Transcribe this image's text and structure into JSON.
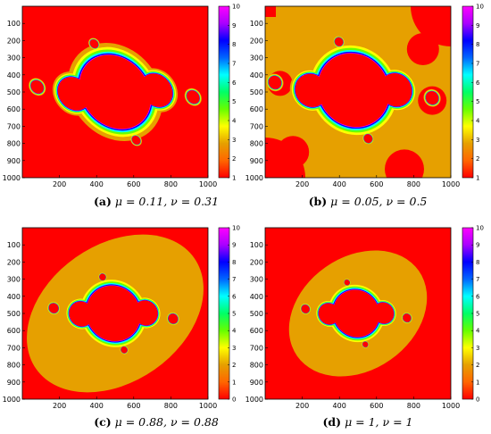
{
  "panels": [
    {
      "id": "a",
      "letter": "(a)",
      "caption_math": "μ = 0.11, ν = 0.31",
      "chart_data": {
        "type": "heatmap",
        "title": "",
        "xlabel": "",
        "ylabel": "",
        "xlim": [
          0,
          1000
        ],
        "ylim": [
          0,
          1000
        ],
        "x_ticks": [
          200,
          400,
          600,
          800,
          1000
        ],
        "y_ticks": [
          100,
          200,
          300,
          400,
          500,
          600,
          700,
          800,
          900,
          1000
        ],
        "colorbar": {
          "min": 1,
          "max": 10,
          "ticks": [
            1,
            2,
            3,
            4,
            5,
            6,
            7,
            8,
            9,
            10
          ]
        },
        "params": {
          "mu": 0.11,
          "nu": 0.31
        }
      }
    },
    {
      "id": "b",
      "letter": "(b)",
      "caption_math": "μ = 0.05, ν = 0.5",
      "chart_data": {
        "type": "heatmap",
        "title": "",
        "xlabel": "",
        "ylabel": "",
        "xlim": [
          0,
          1000
        ],
        "ylim": [
          0,
          1000
        ],
        "x_ticks": [
          200,
          400,
          600,
          800,
          1000
        ],
        "y_ticks": [
          100,
          200,
          300,
          400,
          500,
          600,
          700,
          800,
          900,
          1000
        ],
        "colorbar": {
          "min": 1,
          "max": 10,
          "ticks": [
            1,
            2,
            3,
            4,
            5,
            6,
            7,
            8,
            9,
            10
          ]
        },
        "params": {
          "mu": 0.05,
          "nu": 0.5
        }
      }
    },
    {
      "id": "c",
      "letter": "(c)",
      "caption_math": "μ = 0.88, ν = 0.88",
      "chart_data": {
        "type": "heatmap",
        "title": "",
        "xlabel": "",
        "ylabel": "",
        "xlim": [
          0,
          1000
        ],
        "ylim": [
          0,
          1000
        ],
        "x_ticks": [
          200,
          400,
          600,
          800,
          1000
        ],
        "y_ticks": [
          100,
          200,
          300,
          400,
          500,
          600,
          700,
          800,
          900,
          1000
        ],
        "colorbar": {
          "min": 0,
          "max": 10,
          "ticks": [
            0,
            1,
            2,
            3,
            4,
            5,
            6,
            7,
            8,
            9,
            10
          ]
        },
        "params": {
          "mu": 0.88,
          "nu": 0.88
        }
      }
    },
    {
      "id": "d",
      "letter": "(d)",
      "caption_math": "μ = 1, ν = 1",
      "chart_data": {
        "type": "heatmap",
        "title": "",
        "xlabel": "",
        "ylabel": "",
        "xlim": [
          0,
          1000
        ],
        "ylim": [
          0,
          1000
        ],
        "x_ticks": [
          200,
          400,
          600,
          800,
          1000
        ],
        "y_ticks": [
          100,
          200,
          300,
          400,
          500,
          600,
          700,
          800,
          900,
          1000
        ],
        "colorbar": {
          "min": 0,
          "max": 10,
          "ticks": [
            0,
            1,
            2,
            3,
            4,
            5,
            6,
            7,
            8,
            9,
            10
          ]
        },
        "params": {
          "mu": 1,
          "nu": 1
        }
      }
    }
  ],
  "colormap": [
    "#ff0000",
    "#ff6600",
    "#e6a000",
    "#ffff00",
    "#66ff00",
    "#00ff66",
    "#00ffff",
    "#0066ff",
    "#0000ff",
    "#aa00ff",
    "#ff00ff"
  ]
}
